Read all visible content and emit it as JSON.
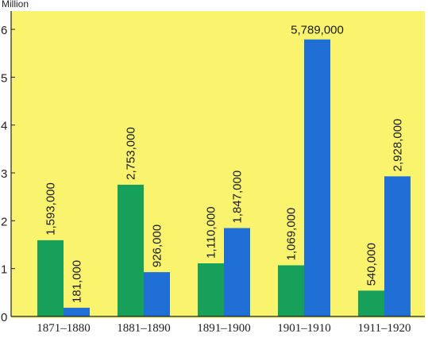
{
  "chart_data": {
    "type": "bar",
    "unit_label": "Million",
    "categories": [
      "1871–1880",
      "1881–1890",
      "1891–1900",
      "1901–1910",
      "1911–1920"
    ],
    "series": [
      {
        "color": "#17a05a",
        "values": [
          1593000,
          2753000,
          1110000,
          1069000,
          540000
        ],
        "labels": [
          "1,593,000",
          "2,753,000",
          "1,110,000",
          "1,069,000",
          "540,000"
        ]
      },
      {
        "color": "#1f6fd6",
        "values": [
          181000,
          926000,
          1847000,
          5789000,
          2928000
        ],
        "labels": [
          "181,000",
          "926,000",
          "1,847,000",
          "5,789,000",
          "2,928,000"
        ]
      }
    ],
    "y_ticks": [
      "0",
      "1",
      "2",
      "3",
      "4",
      "5",
      "6"
    ],
    "ylim": [
      0,
      6
    ],
    "y_scale": 1000000,
    "background_color": "#f9f36e",
    "grid": false,
    "legend": "none"
  }
}
